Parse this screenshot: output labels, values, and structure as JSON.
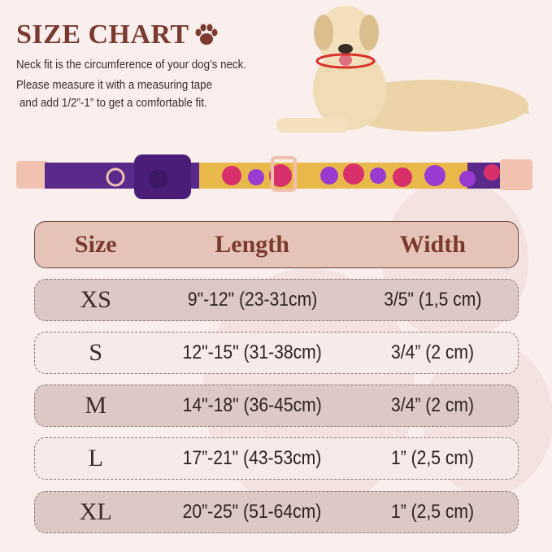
{
  "title": "SIZE CHART",
  "description": [
    "Neck fit is the circumference of your dog’s neck.",
    "Please measure it with a measuring tape",
    "and add 1/2”-1” to get a comfortable fit."
  ],
  "colors": {
    "title": "#7a3a30",
    "background": "#fbefed",
    "header": "#e6c3b8",
    "row_dark": "#dcc8c4",
    "row_light": "#f7ebe9",
    "collar": "#5a2a8a"
  },
  "table": {
    "headers": [
      "Size",
      "Length",
      "Width"
    ],
    "rows": [
      {
        "size": "XS",
        "length": "9\"-12\" (23-31cm)",
        "width": "3/5\" (1,5 cm)"
      },
      {
        "size": "S",
        "length": "12\"-15\" (31-38cm)",
        "width": "3/4” (2 cm)"
      },
      {
        "size": "M",
        "length": "14\"-18\" (36-45cm)",
        "width": "3/4” (2 cm)"
      },
      {
        "size": "L",
        "length": "17”-21\" (43-53cm)",
        "width": "1”  (2,5 cm)"
      },
      {
        "size": "XL",
        "length": "20”-25\" (51-64cm)",
        "width": "1”  (2,5 cm)"
      }
    ]
  }
}
